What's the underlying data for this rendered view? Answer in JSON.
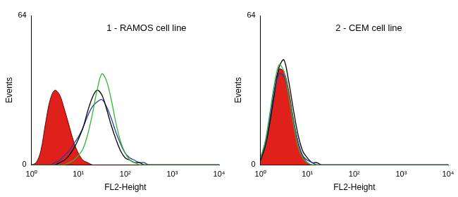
{
  "chart_data": [
    {
      "type": "line",
      "title": "1 - RAMOS cell line",
      "x_label": "FL2-Height",
      "y_label": "Events",
      "log": "x",
      "grid": false,
      "xlim": [
        1,
        10000
      ],
      "xticks": [
        {
          "value": 1,
          "label": "10⁰"
        },
        {
          "value": 10,
          "label": "10¹"
        },
        {
          "value": 100,
          "label": "10²"
        },
        {
          "value": 1000,
          "label": "10³"
        },
        {
          "value": 10000,
          "label": "10⁴"
        }
      ],
      "ylim": [
        0,
        64
      ],
      "yticks": [
        0,
        64
      ],
      "x": [
        1,
        1.26,
        1.58,
        2,
        2.51,
        3.16,
        3.98,
        5.01,
        6.31,
        7.94,
        10,
        12.6,
        15.8,
        20,
        25.1,
        31.6,
        39.8,
        50.1,
        63.1,
        79.4,
        100,
        126,
        158,
        200,
        251,
        316,
        398,
        501,
        631,
        794,
        1000,
        1260,
        1580,
        2000,
        2510,
        3160,
        3980,
        5010,
        6310,
        7940,
        10000
      ],
      "series": [
        {
          "type": "area",
          "color": "#e0201a",
          "values": [
            0,
            1,
            6,
            18,
            28,
            32,
            30,
            24,
            17,
            10,
            5,
            2,
            1,
            0,
            0,
            0,
            0,
            0,
            0,
            0,
            0,
            0,
            0,
            0,
            0,
            0,
            0,
            0,
            0,
            0,
            0,
            0,
            0,
            0,
            0,
            0,
            0,
            0,
            0,
            0,
            0
          ]
        },
        {
          "type": "line",
          "color": "#33b533",
          "values": [
            0,
            0,
            0,
            0,
            0,
            0,
            0,
            0,
            1,
            2,
            4,
            7,
            13,
            22,
            32,
            39,
            36,
            28,
            18,
            10,
            5,
            2,
            1,
            0,
            0,
            0,
            0,
            0,
            0,
            0,
            0,
            0,
            0,
            0,
            0,
            0,
            0,
            0,
            0,
            0,
            0
          ]
        },
        {
          "type": "line",
          "color": "#000000",
          "values": [
            0,
            0,
            0,
            0,
            0,
            0,
            1,
            2,
            4,
            7,
            11,
            16,
            23,
            29,
            32,
            30,
            24,
            17,
            11,
            6,
            3,
            2,
            1,
            1,
            0,
            0,
            0,
            0,
            0,
            0,
            0,
            0,
            0,
            0,
            0,
            0,
            0,
            0,
            0,
            0,
            0
          ]
        },
        {
          "type": "line",
          "color": "#2a3aa8",
          "values": [
            0,
            0,
            0,
            0,
            0,
            1,
            2,
            4,
            6,
            9,
            12,
            16,
            21,
            25,
            27,
            28,
            25,
            20,
            14,
            9,
            5,
            3,
            2,
            1,
            1,
            0,
            0,
            0,
            0,
            0,
            0,
            0,
            0,
            0,
            0,
            0,
            0,
            0,
            0,
            0,
            0
          ]
        }
      ]
    },
    {
      "type": "line",
      "title": "2 - CEM cell line",
      "x_label": "FL2-Height",
      "y_label": "Events",
      "log": "x",
      "grid": false,
      "xlim": [
        1,
        10000
      ],
      "xticks": [
        {
          "value": 1,
          "label": "10⁰"
        },
        {
          "value": 10,
          "label": "10¹"
        },
        {
          "value": 100,
          "label": "10²"
        },
        {
          "value": 1000,
          "label": "10³"
        },
        {
          "value": 10000,
          "label": "10⁴"
        }
      ],
      "ylim": [
        0,
        64
      ],
      "yticks": [
        0,
        64
      ],
      "x": [
        1,
        1.26,
        1.58,
        2,
        2.51,
        3.16,
        3.98,
        5.01,
        6.31,
        7.94,
        10,
        12.6,
        15.8,
        20,
        25.1,
        31.6,
        39.8,
        50.1,
        63.1,
        79.4,
        100,
        126,
        158,
        200,
        251,
        316,
        398,
        501,
        631,
        794,
        1000,
        1260,
        1580,
        2000,
        2510,
        3160,
        3980,
        5010,
        6310,
        7940,
        10000
      ],
      "series": [
        {
          "type": "area",
          "color": "#e0201a",
          "values": [
            2,
            8,
            20,
            33,
            41,
            40,
            32,
            20,
            10,
            4,
            1,
            0,
            0,
            0,
            0,
            0,
            0,
            0,
            0,
            0,
            0,
            0,
            0,
            0,
            0,
            0,
            0,
            0,
            0,
            0,
            0,
            0,
            0,
            0,
            0,
            0,
            0,
            0,
            0,
            0,
            0
          ]
        },
        {
          "type": "line",
          "color": "#33b533",
          "values": [
            3,
            10,
            22,
            35,
            43,
            40,
            30,
            18,
            8,
            3,
            1,
            0,
            0,
            0,
            0,
            0,
            0,
            0,
            0,
            0,
            0,
            0,
            0,
            0,
            0,
            0,
            0,
            0,
            0,
            0,
            0,
            0,
            0,
            0,
            0,
            0,
            0,
            0,
            0,
            0,
            0
          ]
        },
        {
          "type": "line",
          "color": "#2a3aa8",
          "values": [
            3,
            9,
            20,
            32,
            39,
            38,
            30,
            19,
            10,
            4,
            2,
            1,
            0,
            0,
            0,
            0,
            0,
            0,
            0,
            0,
            0,
            0,
            0,
            0,
            0,
            0,
            0,
            0,
            0,
            0,
            0,
            0,
            0,
            0,
            0,
            0,
            0,
            0,
            0,
            0,
            0
          ]
        },
        {
          "type": "line",
          "color": "#000000",
          "values": [
            2,
            8,
            18,
            31,
            42,
            45,
            36,
            24,
            13,
            6,
            3,
            1,
            1,
            0,
            0,
            0,
            0,
            0,
            0,
            0,
            0,
            0,
            0,
            0,
            0,
            0,
            0,
            0,
            0,
            0,
            0,
            0,
            0,
            0,
            0,
            0,
            0,
            0,
            0,
            0,
            0
          ]
        }
      ]
    }
  ]
}
